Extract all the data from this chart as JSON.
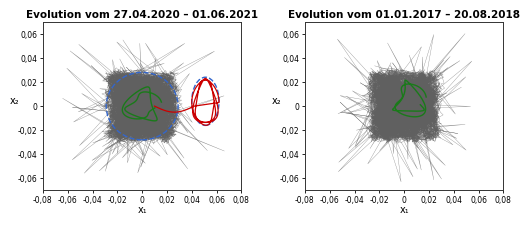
{
  "title_left": "Evolution vom 27.04.2020 – 01.06.2021",
  "title_right": "Evolution vom 01.01.2017 – 20.08.2018",
  "xlim": [
    -0.08,
    0.08
  ],
  "ylim": [
    -0.07,
    0.07
  ],
  "xticks": [
    -0.08,
    -0.06,
    -0.04,
    -0.02,
    0,
    0.02,
    0.04,
    0.06,
    0.08
  ],
  "yticks": [
    -0.06,
    -0.04,
    -0.02,
    0,
    0.02,
    0.04,
    0.06
  ],
  "xlabel": "x₁",
  "ylabel": "x₂",
  "gray_color": "#606060",
  "green_color": "#1a7a1a",
  "blue_dashed_color": "#3366cc",
  "red_color": "#cc0000",
  "background": "#ffffff",
  "title_fontsize": 7.5,
  "tick_fontsize": 5.5,
  "label_fontsize": 7
}
